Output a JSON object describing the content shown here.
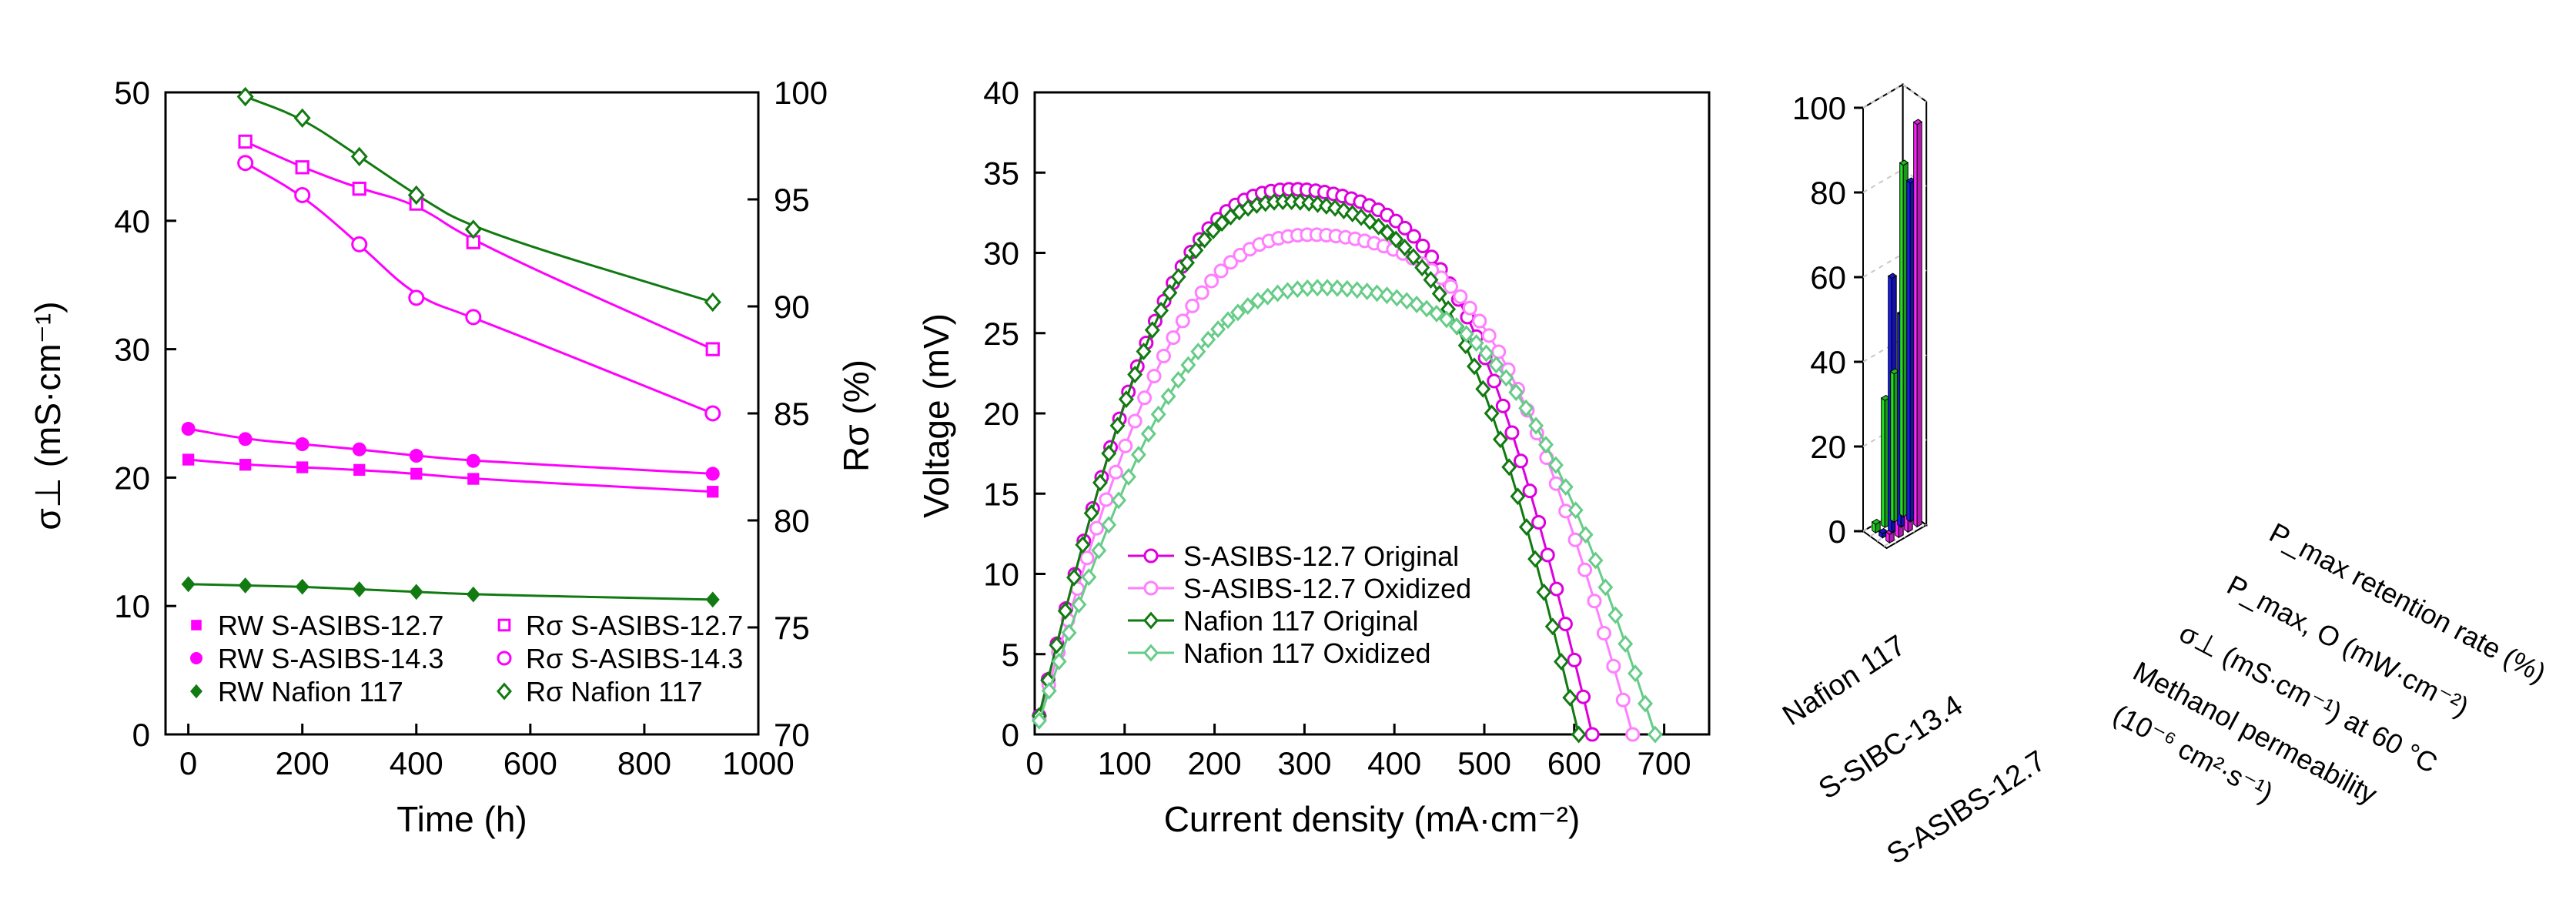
{
  "chart_data": [
    {
      "type": "scatter",
      "xlabel": "Time (h)",
      "ylabel_left": "σ⊥ (mS·cm⁻¹)",
      "ylabel_right": "Rσ (%)",
      "xlim": [
        -40,
        1000
      ],
      "ylim_left": [
        0,
        50
      ],
      "ylim_right": [
        70,
        100
      ],
      "xticks": [
        "0",
        "200",
        "400",
        "600",
        "800",
        "1000"
      ],
      "yticks_left": [
        "0",
        "10",
        "20",
        "30",
        "40",
        "50"
      ],
      "yticks_right": [
        "70",
        "75",
        "80",
        "85",
        "90",
        "95",
        "100"
      ],
      "legend_position": "lower-left",
      "series": [
        {
          "name": "RW S-ASIBS-12.7",
          "axis": "left",
          "marker": "square-filled",
          "color": "#ff00ff",
          "x": [
            0,
            100,
            200,
            300,
            400,
            500,
            920
          ],
          "y": [
            21.4,
            21.0,
            20.8,
            20.6,
            20.3,
            19.9,
            18.9
          ]
        },
        {
          "name": "RW S-ASIBS-14.3",
          "axis": "left",
          "marker": "circle-filled",
          "color": "#ff00ff",
          "x": [
            0,
            100,
            200,
            300,
            400,
            500,
            920
          ],
          "y": [
            23.8,
            23.0,
            22.6,
            22.2,
            21.7,
            21.3,
            20.3
          ]
        },
        {
          "name": "RW Nafion 117",
          "axis": "left",
          "marker": "diamond-filled",
          "color": "#117a11",
          "x": [
            0,
            100,
            200,
            300,
            400,
            500,
            920
          ],
          "y": [
            11.7,
            11.6,
            11.5,
            11.3,
            11.1,
            10.9,
            10.5
          ]
        },
        {
          "name": "Rσ S-ASIBS-12.7",
          "axis": "right",
          "marker": "square-open",
          "color": "#ff00ff",
          "x": [
            100,
            200,
            300,
            400,
            500,
            920
          ],
          "y": [
            97.7,
            96.5,
            95.5,
            94.8,
            93.0,
            88.0
          ]
        },
        {
          "name": "Rσ S-ASIBS-14.3",
          "axis": "right",
          "marker": "circle-open",
          "color": "#ff00ff",
          "x": [
            100,
            200,
            300,
            400,
            500,
            920
          ],
          "y": [
            96.7,
            95.2,
            92.9,
            90.4,
            89.5,
            85.0
          ]
        },
        {
          "name": "Rσ Nafion 117",
          "axis": "right",
          "marker": "diamond-open",
          "color": "#117a11",
          "x": [
            100,
            200,
            300,
            400,
            500,
            920
          ],
          "y": [
            99.8,
            98.8,
            97.0,
            95.2,
            93.6,
            90.2
          ]
        }
      ]
    },
    {
      "type": "line",
      "xlabel": "Current density (mA·cm⁻²)",
      "ylabel": "Voltage (mV)",
      "xlim": [
        0,
        750
      ],
      "ylim": [
        0,
        40
      ],
      "xticks": [
        "0",
        "100",
        "200",
        "300",
        "400",
        "500",
        "600",
        "700"
      ],
      "yticks": [
        "0",
        "5",
        "10",
        "15",
        "20",
        "25",
        "30",
        "35",
        "40"
      ],
      "legend_position": "lower-left",
      "series": [
        {
          "name": "S-ASIBS-12.7 Original",
          "marker": "circle-open",
          "color": "#dd00dd",
          "vmax": 36.0,
          "xmax": 620
        },
        {
          "name": "S-ASIBS-12.7 Oxidized",
          "marker": "circle-open",
          "color": "#ff7fff",
          "vmax": 33.0,
          "xmax": 665
        },
        {
          "name": "Nafion 117 Original",
          "marker": "diamond-open",
          "color": "#117a11",
          "vmax": 35.2,
          "xmax": 605
        },
        {
          "name": "Nafion 117 Oxidized",
          "marker": "diamond-open",
          "color": "#66cc88",
          "vmax": 29.5,
          "xmax": 690
        }
      ]
    },
    {
      "type": "bar3d",
      "zticks": [
        "0",
        "20",
        "40",
        "60",
        "80",
        "100"
      ],
      "zlim": [
        0,
        100
      ],
      "membranes": [
        "Nafion 117",
        "S-SIBC-13.4",
        "S-ASIBS-12.7"
      ],
      "metrics": [
        "P_max retention rate (%)",
        "P_max,O (mW·cm⁻²)",
        "σ⊥ (mS·cm⁻¹) at 60 °C",
        "Methanol permeability (10⁻⁶ cm²·s⁻¹)"
      ],
      "series": [
        {
          "name": "Nafion 117",
          "color": "#22dd22",
          "values": [
            83,
            35,
            30,
            2
          ]
        },
        {
          "name": "S-SIBC-13.4",
          "color": "#1a1aee",
          "values": [
            80,
            50,
            60,
            1
          ]
        },
        {
          "name": "S-ASIBS-12.7",
          "color": "#ff22ff",
          "values": [
            95,
            48,
            34,
            2
          ]
        }
      ]
    }
  ],
  "labels": {
    "a_ylabel_left": "σ⊥ (mS·cm⁻¹)",
    "a_ylabel_right": "Rσ (%)",
    "a_xlabel": "Time (h)",
    "b_ylabel": "Voltage (mV)",
    "b_xlabel": "Current density (mA·cm⁻²)",
    "c_membrane_1": "Nafion 117",
    "c_membrane_2": "S-SIBC-13.4",
    "c_membrane_3": "S-ASIBS-12.7",
    "c_metric_1": "P_max retention rate (%)",
    "c_metric_2": "P_max, O (mW·cm⁻²)",
    "c_metric_3": "σ⊥ (mS·cm⁻¹) at 60 °C",
    "c_metric_4a": "Methanol permeability",
    "c_metric_4b": "(10⁻⁶ cm²·s⁻¹)"
  }
}
